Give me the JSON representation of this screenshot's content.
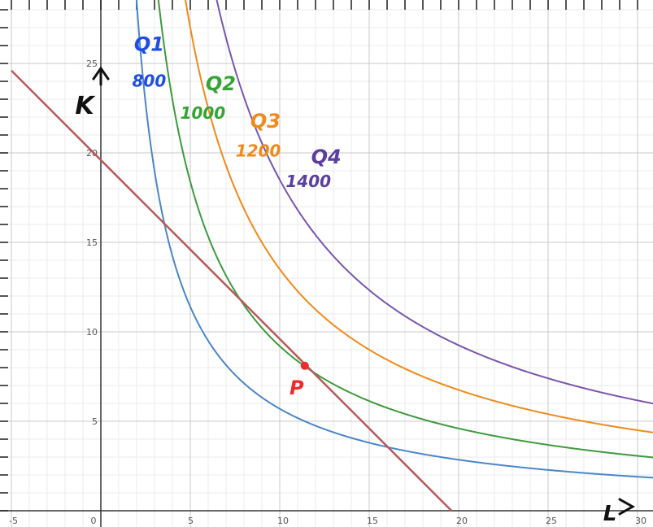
{
  "chart_data": {
    "type": "line",
    "xlabel": "L",
    "ylabel": "K",
    "xlim": [
      -5,
      31
    ],
    "ylim": [
      -0.6,
      28.7
    ],
    "x_ticks": [
      "-5",
      "0",
      "5",
      "10",
      "15",
      "20",
      "25",
      "30"
    ],
    "y_ticks": [
      "5",
      "10",
      "15",
      "20",
      "25"
    ],
    "grid": true,
    "series": [
      {
        "name": "Q1",
        "label": "800",
        "color": "#4a86c8",
        "label_color": "#1f4fe0",
        "k_times_l": 57
      },
      {
        "name": "Q2",
        "label": "1000",
        "color": "#3d9a3d",
        "label_color": "#36a336",
        "k_times_l": 92
      },
      {
        "name": "Q3",
        "label": "1200",
        "color": "#f08a1a",
        "label_color": "#f08a1a",
        "k_times_l": 135
      },
      {
        "name": "Q4",
        "label": "1400",
        "color": "#7a55b0",
        "label_color": "#5a3f9e",
        "k_times_l": 185
      }
    ],
    "budget_line": {
      "color": "#b85a5a",
      "k_intercept": 19.6,
      "l_intercept": 19.6
    },
    "point": {
      "label": "P",
      "x": 11.4,
      "y": 8.1,
      "color": "#ee2a2a"
    }
  }
}
